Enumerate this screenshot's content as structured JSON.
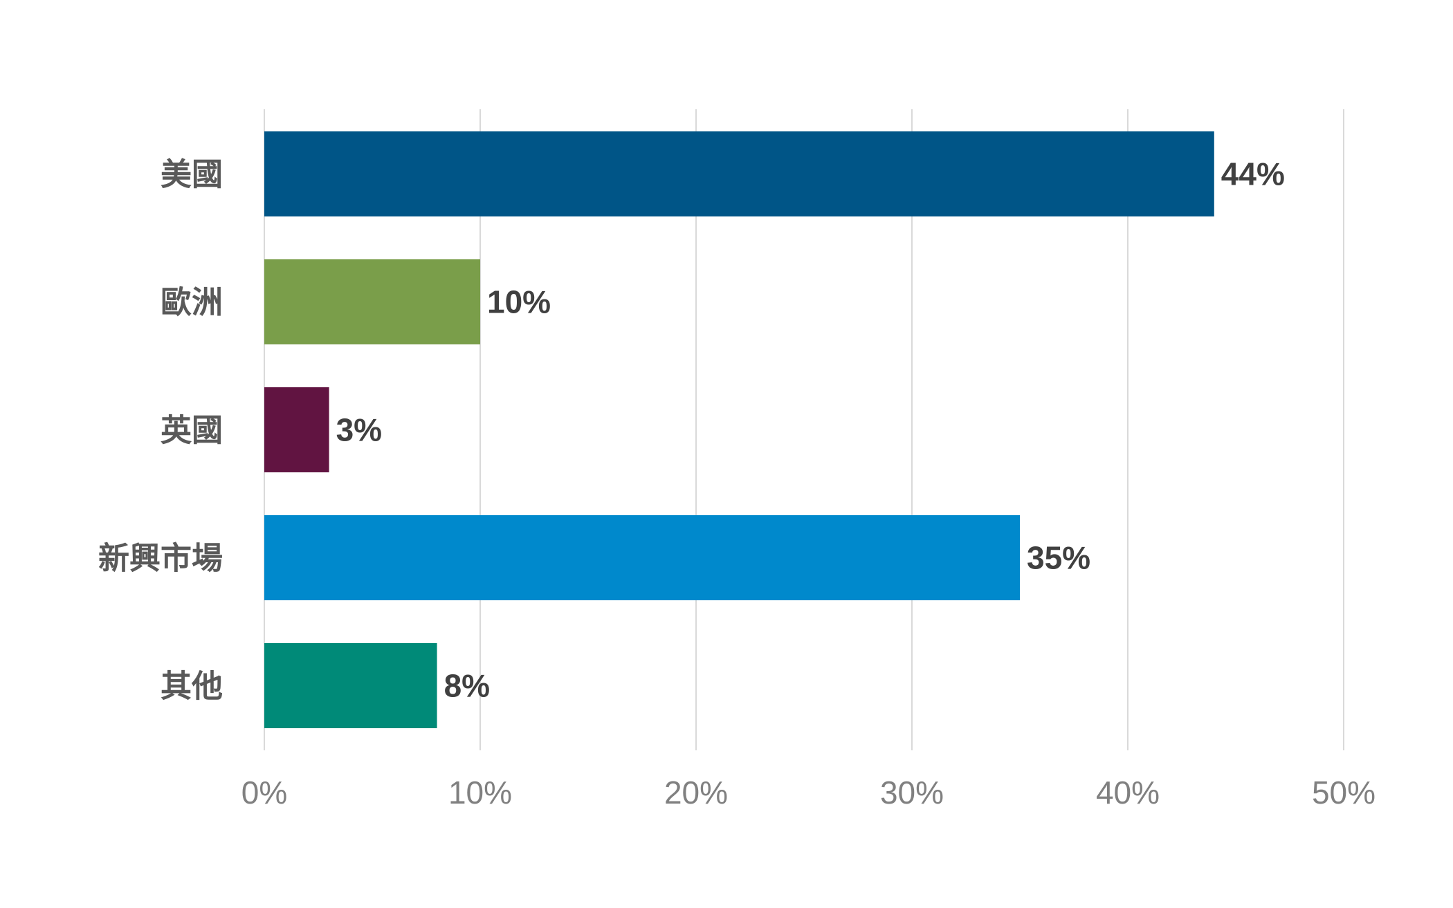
{
  "chart_data": {
    "type": "bar",
    "orientation": "horizontal",
    "title": "",
    "xlabel": "",
    "ylabel": "",
    "categories": [
      "美國",
      "歐洲",
      "英國",
      "新興市場",
      "其他"
    ],
    "values": [
      44,
      10,
      3,
      35,
      8
    ],
    "value_labels": [
      "44%",
      "10%",
      "3%",
      "35%",
      "8%"
    ],
    "colors": [
      "#005587",
      "#7A9E4A",
      "#611441",
      "#0089CC",
      "#008A78"
    ],
    "xlim": [
      0,
      50
    ],
    "xticks": [
      0,
      10,
      20,
      30,
      40,
      50
    ],
    "xtick_labels": [
      "0%",
      "10%",
      "20%",
      "30%",
      "40%",
      "50%"
    ],
    "grid": "vertical",
    "legend": "none"
  }
}
